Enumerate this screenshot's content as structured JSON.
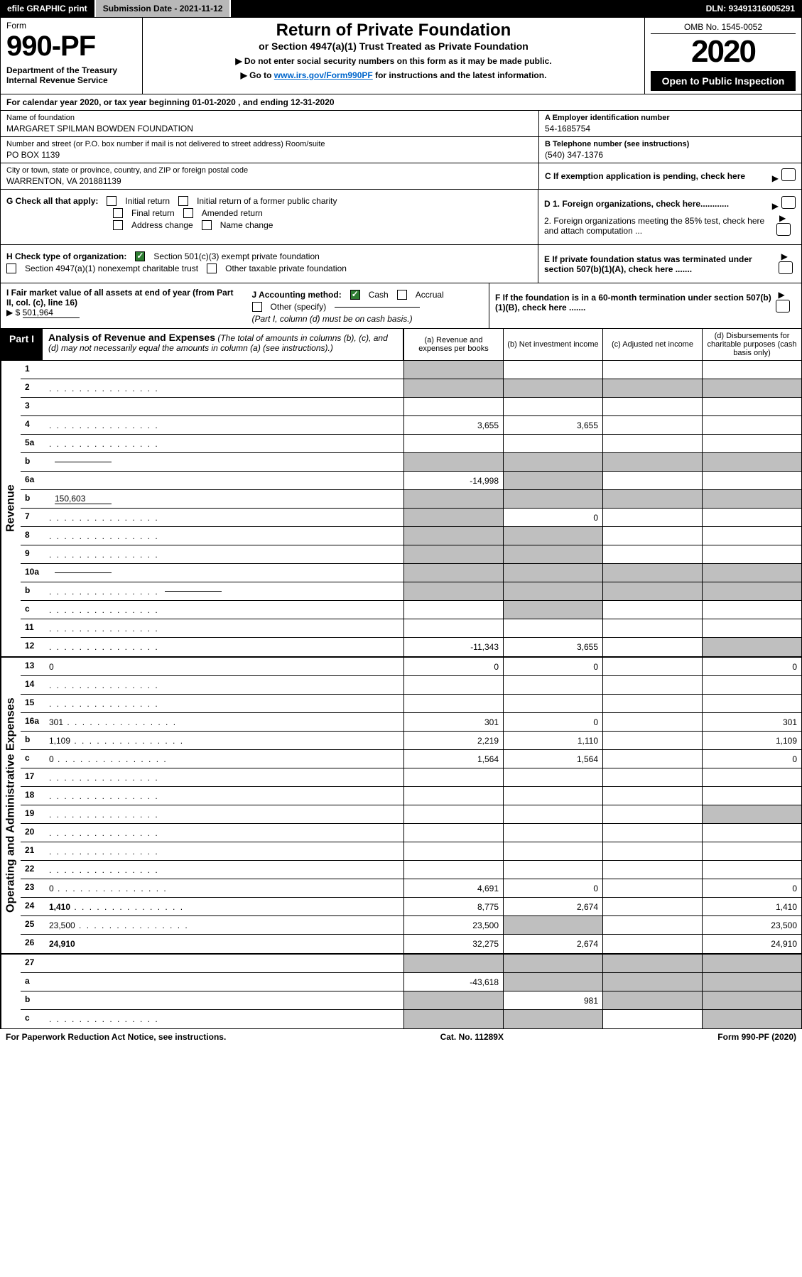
{
  "topbar": {
    "efile": "efile GRAPHIC print",
    "submission_label": "Submission Date - 2021-11-12",
    "dln": "DLN: 93491316005291"
  },
  "header": {
    "form_word": "Form",
    "form_no": "990-PF",
    "dept": "Department of the Treasury\nInternal Revenue Service",
    "title": "Return of Private Foundation",
    "subtitle": "or Section 4947(a)(1) Trust Treated as Private Foundation",
    "instr1": "▶ Do not enter social security numbers on this form as it may be made public.",
    "instr2_pre": "▶ Go to ",
    "instr2_link": "www.irs.gov/Form990PF",
    "instr2_post": " for instructions and the latest information.",
    "omb": "OMB No. 1545-0052",
    "year": "2020",
    "open": "Open to Public Inspection"
  },
  "calendar": "For calendar year 2020, or tax year beginning 01-01-2020                         , and ending 12-31-2020",
  "identity": {
    "name_lbl": "Name of foundation",
    "name_val": "MARGARET SPILMAN BOWDEN FOUNDATION",
    "addr_lbl": "Number and street (or P.O. box number if mail is not delivered to street address)        Room/suite",
    "addr_val": "PO BOX 1139",
    "city_lbl": "City or town, state or province, country, and ZIP or foreign postal code",
    "city_val": "WARRENTON, VA  201881139",
    "ein_lbl": "A Employer identification number",
    "ein_val": "54-1685754",
    "phone_lbl": "B Telephone number (see instructions)",
    "phone_val": "(540) 347-1376",
    "c_lbl": "C If exemption application is pending, check here"
  },
  "g": {
    "lead": "G Check all that apply:",
    "initial": "Initial return",
    "initial_former": "Initial return of a former public charity",
    "final": "Final return",
    "amended": "Amended return",
    "address": "Address change",
    "name": "Name change"
  },
  "d": {
    "d1": "D 1. Foreign organizations, check here............",
    "d2": "2. Foreign organizations meeting the 85% test, check here and attach computation ...",
    "e": "E  If private foundation status was terminated under section 507(b)(1)(A), check here .......",
    "f": "F  If the foundation is in a 60-month termination under section 507(b)(1)(B), check here ......."
  },
  "h": {
    "lead": "H Check type of organization:",
    "opt1": "Section 501(c)(3) exempt private foundation",
    "opt2": "Section 4947(a)(1) nonexempt charitable trust",
    "opt3": "Other taxable private foundation"
  },
  "i": {
    "lead": "I Fair market value of all assets at end of year (from Part II, col. (c), line 16)",
    "val_prefix": "▶ $",
    "val": "501,964"
  },
  "j": {
    "lead": "J Accounting method:",
    "cash": "Cash",
    "accrual": "Accrual",
    "other": "Other (specify)",
    "note": "(Part I, column (d) must be on cash basis.)"
  },
  "part1": {
    "tag": "Part I",
    "title": "Analysis of Revenue and Expenses",
    "note": "(The total of amounts in columns (b), (c), and (d) may not necessarily equal the amounts in column (a) (see instructions).)",
    "col_a": "(a)  Revenue and expenses per books",
    "col_b": "(b)  Net investment income",
    "col_c": "(c)  Adjusted net income",
    "col_d": "(d)  Disbursements for charitable purposes (cash basis only)"
  },
  "vlabels": {
    "revenue": "Revenue",
    "expenses": "Operating and Administrative Expenses"
  },
  "rows_revenue": [
    {
      "n": "1",
      "d": "",
      "a": "",
      "b": "",
      "c": "",
      "ga": true
    },
    {
      "n": "2",
      "d": "",
      "dots": true,
      "a": "",
      "b": "",
      "c": "",
      "ga": true,
      "gb": true,
      "gc": true,
      "gd": true,
      "short": true
    },
    {
      "n": "3",
      "d": "",
      "a": "",
      "b": "",
      "c": ""
    },
    {
      "n": "4",
      "d": "",
      "dots": true,
      "a": "3,655",
      "b": "3,655",
      "c": ""
    },
    {
      "n": "5a",
      "d": "",
      "dots": true,
      "a": "",
      "b": "",
      "c": ""
    },
    {
      "n": "b",
      "d": "",
      "uline": true,
      "a": "",
      "b": "",
      "c": "",
      "ga": true,
      "gb": true,
      "gc": true,
      "gd": true
    },
    {
      "n": "6a",
      "d": "",
      "a": "-14,998",
      "b": "",
      "c": "",
      "gb": true
    },
    {
      "n": "b",
      "d": "",
      "uline": true,
      "uval": "150,603",
      "a": "",
      "b": "",
      "c": "",
      "ga": true,
      "gb": true,
      "gc": true,
      "gd": true
    },
    {
      "n": "7",
      "d": "",
      "dots": true,
      "a": "",
      "b": "0",
      "c": "",
      "ga": true
    },
    {
      "n": "8",
      "d": "",
      "dots": true,
      "a": "",
      "b": "",
      "c": "",
      "ga": true,
      "gb": true
    },
    {
      "n": "9",
      "d": "",
      "dots": true,
      "a": "",
      "b": "",
      "c": "",
      "ga": true,
      "gb": true
    },
    {
      "n": "10a",
      "d": "",
      "uline": true,
      "a": "",
      "b": "",
      "c": "",
      "ga": true,
      "gb": true,
      "gc": true,
      "gd": true
    },
    {
      "n": "b",
      "d": "",
      "dots": true,
      "uline": true,
      "a": "",
      "b": "",
      "c": "",
      "ga": true,
      "gb": true,
      "gc": true,
      "gd": true
    },
    {
      "n": "c",
      "d": "",
      "dots": true,
      "a": "",
      "b": "",
      "c": "",
      "gb": true
    },
    {
      "n": "11",
      "d": "",
      "dots": true,
      "a": "",
      "b": "",
      "c": ""
    },
    {
      "n": "12",
      "d": "",
      "dots": true,
      "bold": true,
      "a": "-11,343",
      "b": "3,655",
      "c": "",
      "gd": true
    }
  ],
  "rows_expenses": [
    {
      "n": "13",
      "d": "0",
      "a": "0",
      "b": "0",
      "c": ""
    },
    {
      "n": "14",
      "d": "",
      "dots": true,
      "a": "",
      "b": "",
      "c": ""
    },
    {
      "n": "15",
      "d": "",
      "dots": true,
      "a": "",
      "b": "",
      "c": ""
    },
    {
      "n": "16a",
      "d": "301",
      "dots": true,
      "a": "301",
      "b": "0",
      "c": ""
    },
    {
      "n": "b",
      "d": "1,109",
      "dots": true,
      "a": "2,219",
      "b": "1,110",
      "c": ""
    },
    {
      "n": "c",
      "d": "0",
      "dots": true,
      "a": "1,564",
      "b": "1,564",
      "c": ""
    },
    {
      "n": "17",
      "d": "",
      "dots": true,
      "a": "",
      "b": "",
      "c": ""
    },
    {
      "n": "18",
      "d": "",
      "dots": true,
      "a": "",
      "b": "",
      "c": ""
    },
    {
      "n": "19",
      "d": "",
      "dots": true,
      "a": "",
      "b": "",
      "c": "",
      "gd": true
    },
    {
      "n": "20",
      "d": "",
      "dots": true,
      "a": "",
      "b": "",
      "c": ""
    },
    {
      "n": "21",
      "d": "",
      "dots": true,
      "a": "",
      "b": "",
      "c": ""
    },
    {
      "n": "22",
      "d": "",
      "dots": true,
      "a": "",
      "b": "",
      "c": ""
    },
    {
      "n": "23",
      "d": "0",
      "dots": true,
      "a": "4,691",
      "b": "0",
      "c": ""
    },
    {
      "n": "24",
      "d": "1,410",
      "dots": true,
      "bold": true,
      "a": "8,775",
      "b": "2,674",
      "c": ""
    },
    {
      "n": "25",
      "d": "23,500",
      "dots": true,
      "a": "23,500",
      "b": "",
      "c": "",
      "gb": true
    },
    {
      "n": "26",
      "d": "24,910",
      "bold": true,
      "a": "32,275",
      "b": "2,674",
      "c": ""
    }
  ],
  "rows_bottom": [
    {
      "n": "27",
      "d": "",
      "a": "",
      "b": "",
      "c": "",
      "ga": true,
      "gb": true,
      "gc": true,
      "gd": true
    },
    {
      "n": "a",
      "d": "",
      "bold": true,
      "a": "-43,618",
      "b": "",
      "c": "",
      "gb": true,
      "gc": true,
      "gd": true
    },
    {
      "n": "b",
      "d": "",
      "bold": true,
      "a": "",
      "b": "981",
      "c": "",
      "ga": true,
      "gc": true,
      "gd": true
    },
    {
      "n": "c",
      "d": "",
      "dots": true,
      "bold": true,
      "a": "",
      "b": "",
      "c": "",
      "ga": true,
      "gb": true,
      "gd": true
    }
  ],
  "footer": {
    "left": "For Paperwork Reduction Act Notice, see instructions.",
    "mid": "Cat. No. 11289X",
    "right": "Form 990-PF (2020)"
  },
  "colors": {
    "black": "#000000",
    "white": "#ffffff",
    "grey_cell": "#bfbfbf",
    "topbar_grey": "#b8b8b8",
    "check_green": "#2e7d32",
    "link": "#0066cc"
  }
}
